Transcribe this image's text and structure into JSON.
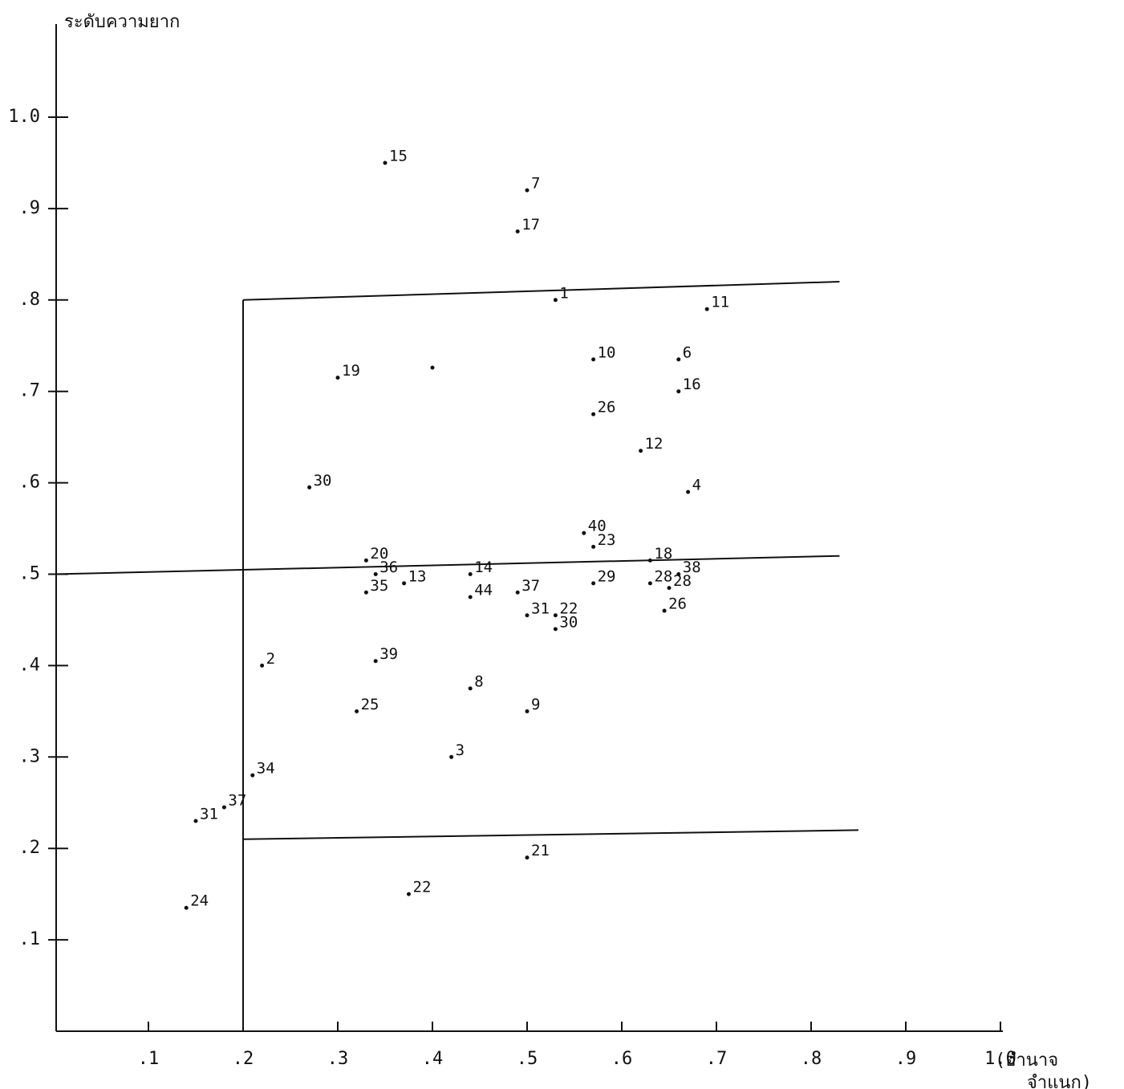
{
  "chart_data": {
    "type": "scatter",
    "ylabel": "ระดับความยาก",
    "xlabel": [
      "(อำนาจ",
      "จำแนก)"
    ],
    "xlim": [
      0,
      1.0
    ],
    "ylim": [
      0,
      1.0
    ],
    "xticks": [
      {
        "value": 0.1,
        "label": ".1"
      },
      {
        "value": 0.2,
        "label": ".2"
      },
      {
        "value": 0.3,
        "label": ".3"
      },
      {
        "value": 0.4,
        "label": ".4"
      },
      {
        "value": 0.5,
        "label": ".5"
      },
      {
        "value": 0.6,
        "label": ".6"
      },
      {
        "value": 0.7,
        "label": ".7"
      },
      {
        "value": 0.8,
        "label": ".8"
      },
      {
        "value": 0.9,
        "label": ".9"
      },
      {
        "value": 1.0,
        "label": "1.0"
      }
    ],
    "yticks": [
      {
        "value": 0.1,
        "label": ".1"
      },
      {
        "value": 0.2,
        "label": ".2"
      },
      {
        "value": 0.3,
        "label": ".3"
      },
      {
        "value": 0.4,
        "label": ".4"
      },
      {
        "value": 0.5,
        "label": ".5"
      },
      {
        "value": 0.6,
        "label": ".6"
      },
      {
        "value": 0.7,
        "label": ".7"
      },
      {
        "value": 0.8,
        "label": ".8"
      },
      {
        "value": 0.9,
        "label": ".9"
      },
      {
        "value": 1.0,
        "label": "1.0"
      }
    ],
    "color": "#111111",
    "labels": [
      "15",
      "7",
      "17",
      "1",
      "11",
      "10",
      "6",
      "19",
      null,
      "16",
      "26",
      "12",
      "4",
      "30",
      "40",
      "23",
      "18",
      "20",
      "36",
      "14",
      "37",
      "29",
      "28",
      "38",
      "28",
      "35",
      "13",
      "44",
      "31",
      "22",
      "30",
      "26",
      "39",
      "2",
      "8",
      "9",
      "25",
      "3",
      "34",
      "37",
      "31",
      "24",
      "21",
      "22"
    ],
    "x": [
      0.35,
      0.5,
      0.49,
      0.53,
      0.69,
      0.57,
      0.66,
      0.3,
      0.4,
      0.66,
      0.57,
      0.62,
      0.67,
      0.27,
      0.56,
      0.57,
      0.63,
      0.33,
      0.34,
      0.44,
      0.49,
      0.57,
      0.63,
      0.66,
      0.65,
      0.33,
      0.37,
      0.44,
      0.5,
      0.53,
      0.53,
      0.645,
      0.34,
      0.22,
      0.44,
      0.5,
      0.32,
      0.42,
      0.21,
      0.18,
      0.15,
      0.14,
      0.5,
      0.375
    ],
    "y": [
      0.95,
      0.92,
      0.875,
      0.8,
      0.79,
      0.735,
      0.735,
      0.715,
      0.726,
      0.7,
      0.675,
      0.635,
      0.59,
      0.595,
      0.545,
      0.53,
      0.515,
      0.515,
      0.5,
      0.5,
      0.48,
      0.49,
      0.49,
      0.5,
      0.485,
      0.48,
      0.49,
      0.475,
      0.455,
      0.455,
      0.44,
      0.46,
      0.405,
      0.4,
      0.375,
      0.35,
      0.35,
      0.3,
      0.28,
      0.245,
      0.23,
      0.135,
      0.19,
      0.15
    ],
    "lines": [
      {
        "x": [
          0.2,
          0.2
        ],
        "y": [
          0,
          0.8
        ]
      },
      {
        "x": [
          0.2,
          0.83
        ],
        "y": [
          0.8,
          0.82
        ]
      },
      {
        "x": [
          0,
          0.83
        ],
        "y": [
          0.5,
          0.52
        ]
      },
      {
        "x": [
          0.2,
          0.85
        ],
        "y": [
          0.21,
          0.22
        ]
      }
    ]
  }
}
